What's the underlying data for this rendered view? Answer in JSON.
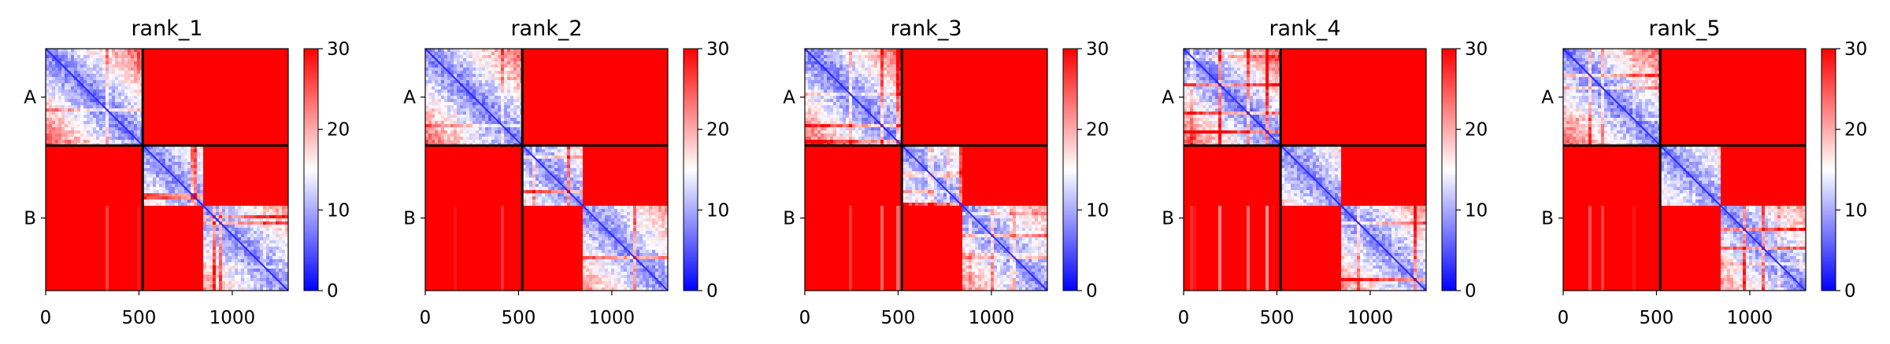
{
  "chart_data": {
    "type": "heatmap",
    "panels": [
      {
        "title": "rank_1"
      },
      {
        "title": "rank_2"
      },
      {
        "title": "rank_3"
      },
      {
        "title": "rank_4"
      },
      {
        "title": "rank_5"
      }
    ],
    "chains": [
      {
        "label": "A",
        "start": 0,
        "end": 520
      },
      {
        "label": "B",
        "start": 520,
        "end": 1300
      }
    ],
    "domain_break_b": 840,
    "axis_range": [
      0,
      1300
    ],
    "xticks": [
      0,
      500,
      1000
    ],
    "xtick_labels": [
      "0",
      "500",
      "1000"
    ],
    "colorbar": {
      "min": 0,
      "max": 30,
      "ticks": [
        0,
        10,
        20,
        30
      ],
      "tick_labels": [
        "0",
        "10",
        "20",
        "30"
      ],
      "colormap": "bwr",
      "colors": [
        "#0000ff",
        "#ffffff",
        "#ff0000"
      ]
    },
    "block_values": {
      "A_A_min": 2,
      "A_A_max": 30,
      "B_B_min": 2,
      "B_B_max": 30,
      "A_B": 30,
      "B_A": 30
    },
    "grid": false
  }
}
